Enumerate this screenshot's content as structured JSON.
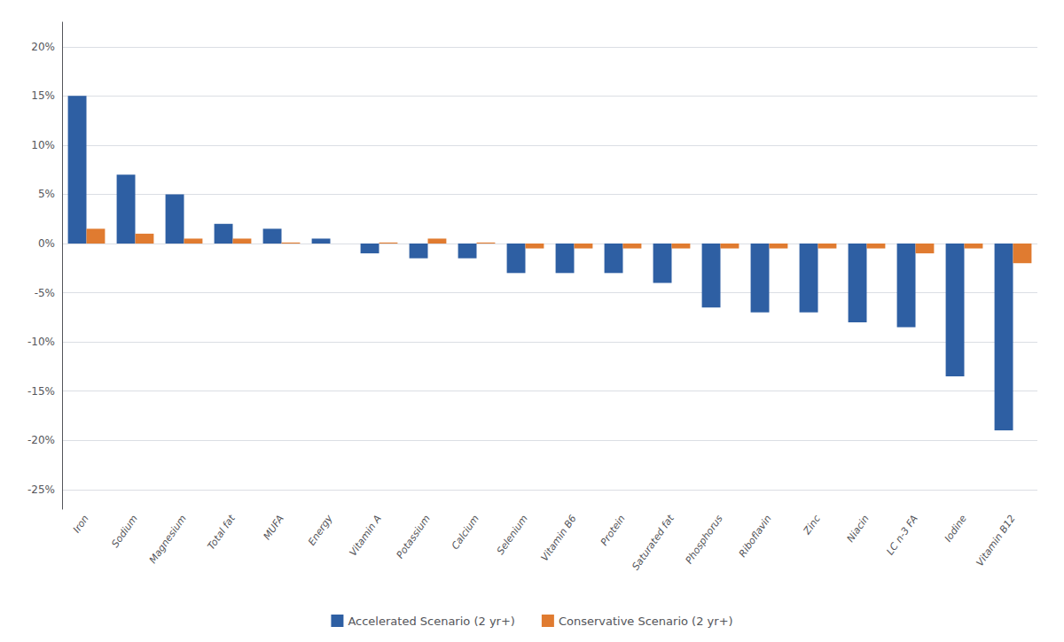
{
  "chart_data": {
    "type": "bar",
    "categories": [
      "Iron",
      "Sodium",
      "Magnesium",
      "Total fat",
      "MUFA",
      "Energy",
      "Vitamin A",
      "Potassium",
      "Calcium",
      "Selenium",
      "Vitamin B6",
      "Protein",
      "Saturated fat",
      "Phosphorus",
      "Riboflavin",
      "Zinc",
      "Niacin",
      "LC n-3 FA",
      "Iodine",
      "Vitamin B12"
    ],
    "series": [
      {
        "name": "Accelerated Scenario (2 yr+)",
        "color": "#2E5FA3",
        "values": [
          0.15,
          0.07,
          0.05,
          0.02,
          0.015,
          0.005,
          -0.01,
          -0.015,
          -0.015,
          -0.03,
          -0.03,
          -0.03,
          -0.04,
          -0.065,
          -0.07,
          -0.07,
          -0.08,
          -0.085,
          -0.135,
          -0.19
        ]
      },
      {
        "name": "Conservative Scenario (2 yr+)",
        "color": "#E07B30",
        "values": [
          0.015,
          0.01,
          0.005,
          0.005,
          0.001,
          0.0,
          0.001,
          0.005,
          0.001,
          -0.005,
          -0.005,
          -0.005,
          -0.005,
          -0.005,
          -0.005,
          -0.005,
          -0.005,
          -0.01,
          -0.005,
          -0.02
        ]
      }
    ],
    "ylim": [
      -0.27,
      0.225
    ],
    "yticks": [
      {
        "value": -0.25,
        "label": "-25%"
      },
      {
        "value": -0.2,
        "label": "-20%"
      },
      {
        "value": -0.15,
        "label": "-15%"
      },
      {
        "value": -0.1,
        "label": "-10%"
      },
      {
        "value": -0.05,
        "label": "-5%"
      },
      {
        "value": 0.0,
        "label": "0%"
      },
      {
        "value": 0.05,
        "label": "5%"
      },
      {
        "value": 0.1,
        "label": "10%"
      },
      {
        "value": 0.15,
        "label": "15%"
      },
      {
        "value": 0.2,
        "label": "20%"
      }
    ],
    "grid": true,
    "legend": "bottom"
  }
}
